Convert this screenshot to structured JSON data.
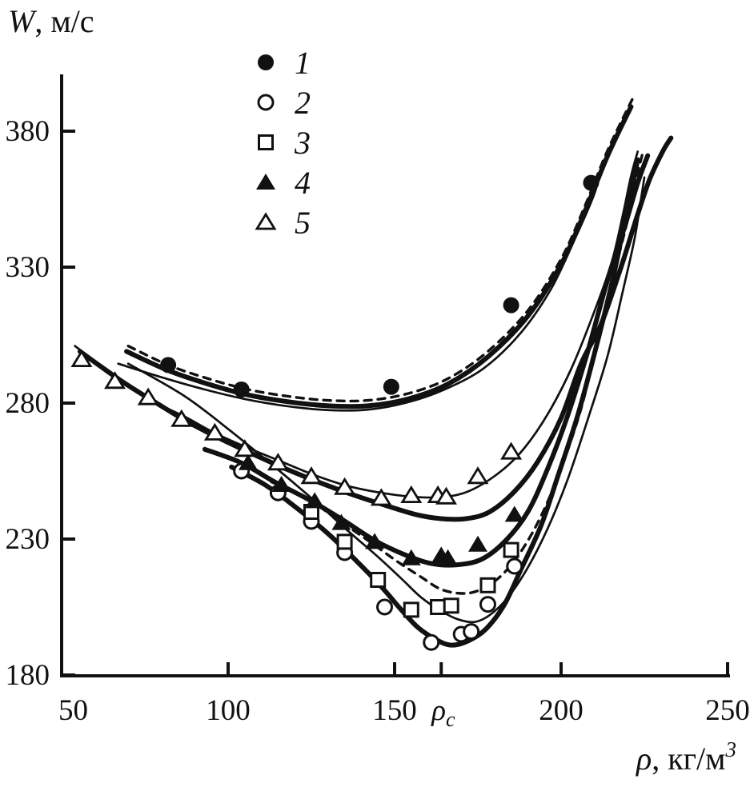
{
  "colors": {
    "ink": "#111111",
    "background": "#ffffff"
  },
  "chart_data": {
    "type": "scatter",
    "title": "",
    "ylabel_main": "W",
    "ylabel_rest": ", м/с",
    "xlabel_main": "ρ",
    "xlabel_rest": ", кг/м",
    "xlabel_sup": "3",
    "xlim": [
      50,
      250
    ],
    "ylim": [
      180,
      395
    ],
    "grid": false,
    "legend_position": "top-inside",
    "x_axis": {
      "origin_label": "50",
      "ticks": [
        {
          "value": 100,
          "label": "100"
        },
        {
          "value": 150,
          "label": "150"
        },
        {
          "value": 200,
          "label": "200"
        },
        {
          "value": 250,
          "label": "250"
        }
      ],
      "critical_tick": {
        "value": 164,
        "label_main": "ρ",
        "label_sub": "c"
      }
    },
    "y_axis": {
      "ticks": [
        {
          "value": 380,
          "label": "380"
        },
        {
          "value": 330,
          "label": "330"
        },
        {
          "value": 280,
          "label": "280"
        },
        {
          "value": 230,
          "label": "230"
        },
        {
          "value": 180,
          "label": "180"
        }
      ]
    },
    "legend": [
      {
        "marker": "circle-filled",
        "label": "1"
      },
      {
        "marker": "circle-open",
        "label": "2"
      },
      {
        "marker": "square-open",
        "label": "3"
      },
      {
        "marker": "triangle-filled",
        "label": "4"
      },
      {
        "marker": "triangle-open",
        "label": "5"
      }
    ],
    "series": [
      {
        "name": "series-1",
        "marker": "circle-filled",
        "points": [
          [
            82,
            294
          ],
          [
            104,
            285
          ],
          [
            149,
            286
          ],
          [
            185,
            316
          ],
          [
            209,
            361
          ]
        ]
      },
      {
        "name": "series-2",
        "marker": "circle-open",
        "points": [
          [
            104,
            255
          ],
          [
            115,
            247
          ],
          [
            125,
            236.5
          ],
          [
            135,
            225
          ],
          [
            147,
            205
          ],
          [
            161,
            192
          ],
          [
            170,
            195
          ],
          [
            173,
            196
          ],
          [
            178,
            206
          ],
          [
            186,
            220
          ]
        ]
      },
      {
        "name": "series-3",
        "marker": "square-open",
        "points": [
          [
            125,
            240
          ],
          [
            135,
            229
          ],
          [
            145,
            215
          ],
          [
            155,
            204
          ],
          [
            163,
            205
          ],
          [
            167,
            205.5
          ],
          [
            178,
            213
          ],
          [
            185,
            226
          ]
        ]
      },
      {
        "name": "series-4",
        "marker": "triangle-filled",
        "points": [
          [
            106,
            258
          ],
          [
            116,
            250
          ],
          [
            126,
            244
          ],
          [
            134,
            236
          ],
          [
            144,
            229
          ],
          [
            155,
            223
          ],
          [
            164,
            224
          ],
          [
            166,
            223
          ],
          [
            175,
            228
          ],
          [
            186,
            239
          ]
        ]
      },
      {
        "name": "series-5",
        "marker": "triangle-open",
        "points": [
          [
            56,
            296
          ],
          [
            66,
            288
          ],
          [
            76,
            282
          ],
          [
            86,
            274
          ],
          [
            96,
            269
          ],
          [
            105,
            263
          ],
          [
            115,
            258
          ],
          [
            125,
            253
          ],
          [
            135,
            249
          ],
          [
            146,
            245
          ],
          [
            155,
            246
          ],
          [
            163,
            246
          ],
          [
            165.5,
            245.5
          ],
          [
            175,
            253
          ],
          [
            185,
            262
          ]
        ]
      }
    ],
    "curves": [
      {
        "name": "fit-1-thin",
        "style": "thin",
        "points": [
          [
            67,
            294.5
          ],
          [
            80,
            289.5
          ],
          [
            93,
            285
          ],
          [
            105,
            281.5
          ],
          [
            117,
            279
          ],
          [
            129,
            277.5
          ],
          [
            141,
            277.5
          ],
          [
            153,
            280
          ],
          [
            165,
            285
          ],
          [
            177,
            293
          ],
          [
            188,
            306
          ],
          [
            197,
            322
          ],
          [
            204,
            340
          ],
          [
            210,
            357
          ],
          [
            212.5,
            369
          ]
        ]
      },
      {
        "name": "fit-1-thick",
        "style": "thick",
        "points": [
          [
            69.5,
            299
          ],
          [
            82,
            292
          ],
          [
            94,
            287
          ],
          [
            106,
            283
          ],
          [
            118,
            280.5
          ],
          [
            130,
            279
          ],
          [
            142,
            279
          ],
          [
            154,
            281.5
          ],
          [
            166,
            287
          ],
          [
            178,
            297
          ],
          [
            190,
            312
          ],
          [
            200,
            331
          ],
          [
            207,
            350
          ],
          [
            214,
            371
          ],
          [
            221,
            389
          ]
        ]
      },
      {
        "name": "fit-1-dashed",
        "style": "dashed",
        "points": [
          [
            70,
            301
          ],
          [
            82,
            294
          ],
          [
            94,
            289
          ],
          [
            106,
            285
          ],
          [
            118,
            282.5
          ],
          [
            130,
            281
          ],
          [
            142,
            281
          ],
          [
            154,
            283.5
          ],
          [
            166,
            289
          ],
          [
            178,
            299
          ],
          [
            190,
            314
          ],
          [
            200,
            333
          ],
          [
            207,
            352
          ],
          [
            214,
            373
          ],
          [
            221.5,
            392
          ]
        ]
      },
      {
        "name": "fit-5-thin",
        "style": "thin",
        "points": [
          [
            54,
            301
          ],
          [
            66,
            290
          ],
          [
            77,
            281
          ],
          [
            87,
            275
          ],
          [
            96,
            269
          ],
          [
            106,
            263.5
          ],
          [
            116,
            258.5
          ],
          [
            126,
            253.5
          ],
          [
            136,
            249.5
          ],
          [
            146,
            247
          ],
          [
            156,
            245.5
          ],
          [
            165,
            245.5
          ],
          [
            173,
            248
          ],
          [
            182,
            255
          ],
          [
            189,
            263.5
          ],
          [
            196,
            276
          ],
          [
            203,
            292.5
          ],
          [
            209,
            310.5
          ],
          [
            215,
            331
          ],
          [
            218.5,
            349
          ],
          [
            221,
            363.5
          ],
          [
            223,
            372.5
          ]
        ]
      },
      {
        "name": "fit-5-thick",
        "style": "thick",
        "points": [
          [
            55.5,
            299
          ],
          [
            67.5,
            288.5
          ],
          [
            78.5,
            280
          ],
          [
            88,
            273
          ],
          [
            97.5,
            267
          ],
          [
            107,
            261.5
          ],
          [
            117,
            256
          ],
          [
            127,
            251
          ],
          [
            137,
            246.5
          ],
          [
            147,
            242.5
          ],
          [
            156.5,
            239
          ],
          [
            164,
            237.5
          ],
          [
            171.5,
            237.5
          ],
          [
            178.5,
            240
          ],
          [
            186,
            247.5
          ],
          [
            193,
            258.5
          ],
          [
            200,
            274.5
          ],
          [
            206,
            294.5
          ],
          [
            212,
            309
          ],
          [
            218,
            330
          ],
          [
            222.5,
            347.5
          ],
          [
            226.5,
            362
          ],
          [
            230.5,
            372.5
          ],
          [
            233,
            377.5
          ]
        ]
      },
      {
        "name": "fit-4-thick",
        "style": "thick",
        "points": [
          [
            93,
            263
          ],
          [
            104,
            258
          ],
          [
            114,
            251
          ],
          [
            125,
            244
          ],
          [
            134.5,
            237
          ],
          [
            144,
            229.5
          ],
          [
            153.5,
            224
          ],
          [
            161,
            221
          ],
          [
            168.5,
            220.5
          ],
          [
            176,
            222.5
          ],
          [
            183,
            229
          ],
          [
            190,
            240
          ],
          [
            196,
            256
          ],
          [
            202,
            275.5
          ],
          [
            208,
            299
          ],
          [
            214,
            325.5
          ],
          [
            219,
            344.5
          ],
          [
            223,
            361
          ],
          [
            226,
            371
          ]
        ]
      },
      {
        "name": "fit-34-dashed",
        "style": "dashed",
        "points": [
          [
            113,
            251
          ],
          [
            123,
            245.5
          ],
          [
            132.5,
            237.5
          ],
          [
            142,
            229.5
          ],
          [
            150.5,
            222
          ],
          [
            158,
            216
          ],
          [
            164,
            211.5
          ],
          [
            170.5,
            210
          ],
          [
            176,
            211.5
          ],
          [
            182,
            216.5
          ],
          [
            188,
            225.5
          ],
          [
            194,
            238.5
          ],
          [
            200,
            256
          ],
          [
            206,
            278
          ],
          [
            211,
            303
          ],
          [
            216,
            328
          ],
          [
            220,
            347.5
          ],
          [
            222.5,
            362
          ],
          [
            224.5,
            372
          ]
        ]
      },
      {
        "name": "fit-3-thin",
        "style": "thin",
        "points": [
          [
            70,
            294.5
          ],
          [
            87,
            282.5
          ],
          [
            101,
            269.5
          ],
          [
            114.5,
            256
          ],
          [
            126.5,
            243.5
          ],
          [
            136,
            233
          ],
          [
            144.5,
            224
          ],
          [
            152,
            215.5
          ],
          [
            158,
            208.5
          ],
          [
            164,
            203.5
          ],
          [
            169,
            200.5
          ],
          [
            174,
            199.5
          ],
          [
            178.5,
            202
          ],
          [
            184,
            208.5
          ],
          [
            190,
            219.5
          ],
          [
            196,
            234
          ],
          [
            202,
            252
          ],
          [
            208,
            274
          ],
          [
            214,
            297.5
          ],
          [
            218.5,
            321
          ],
          [
            222,
            340
          ],
          [
            224,
            355
          ],
          [
            225,
            363
          ]
        ]
      },
      {
        "name": "fit-2-thick",
        "style": "thick",
        "points": [
          [
            101,
            256.5
          ],
          [
            111,
            250
          ],
          [
            120,
            242
          ],
          [
            130,
            232
          ],
          [
            138.5,
            222
          ],
          [
            146,
            212.5
          ],
          [
            152,
            204
          ],
          [
            157,
            197.5
          ],
          [
            162.5,
            193
          ],
          [
            167,
            191
          ],
          [
            172,
            192.5
          ],
          [
            177.5,
            197
          ],
          [
            183,
            206
          ],
          [
            188,
            219
          ],
          [
            194,
            235
          ],
          [
            199,
            253
          ],
          [
            205,
            275.5
          ],
          [
            210.5,
            300.5
          ],
          [
            215.5,
            325.5
          ],
          [
            219,
            346
          ],
          [
            221.5,
            360.5
          ],
          [
            223,
            369.5
          ]
        ]
      }
    ]
  }
}
